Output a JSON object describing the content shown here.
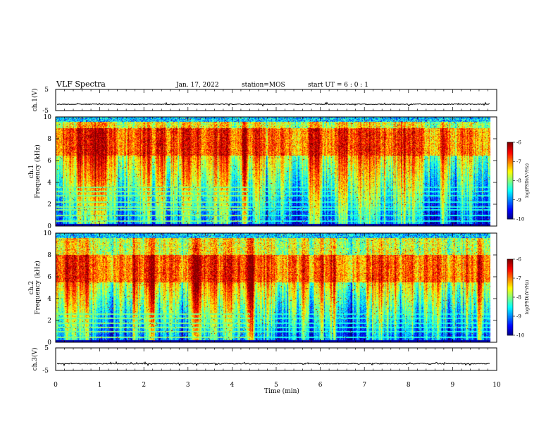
{
  "header": {
    "title": "VLF Spectra",
    "date": "Jan. 17, 2022",
    "station": "station=MOS",
    "start": "start UT =  6 : 0 : 1"
  },
  "chart_data": [
    {
      "type": "line",
      "name": "ch1-waveform",
      "ylabel": "ch.1(V)",
      "ylim": [
        -5,
        5
      ],
      "yticks": [
        "5",
        "-5"
      ],
      "baseline": -2
    },
    {
      "type": "heatmap",
      "name": "ch1-spectrogram",
      "ylabel": "ch.1\nFrequency (kHz)",
      "ylabel_lines": [
        "ch.1",
        "Frequency (kHz)"
      ],
      "ylim": [
        0,
        10
      ],
      "yticks": [
        "0",
        "2",
        "4",
        "6",
        "8",
        "10"
      ],
      "xlim": [
        0,
        10
      ],
      "data_end_min": 9.85,
      "colorbar": {
        "label": "log(PSD)(V²/Hz)",
        "range": [
          -10,
          -6
        ],
        "ticks": [
          "-6",
          "-7",
          "-8",
          "-9",
          "-10"
        ]
      },
      "intense_band_khz": [
        6.5,
        9
      ],
      "lines_khz": [
        0.5,
        1.0,
        1.5,
        1.8,
        2.2,
        2.8,
        3.2,
        3.6
      ]
    },
    {
      "type": "heatmap",
      "name": "ch2-spectrogram",
      "ylabel": "ch.2\nFrequency (kHz)",
      "ylabel_lines": [
        "ch.2",
        "Frequency (kHz)"
      ],
      "ylim": [
        0,
        10
      ],
      "yticks": [
        "0",
        "2",
        "4",
        "6",
        "8",
        "10"
      ],
      "xlim": [
        0,
        10
      ],
      "data_end_min": 9.85,
      "colorbar": {
        "label": "log(PSD)(V²/Hz)",
        "range": [
          -10,
          -6
        ],
        "ticks": [
          "-6",
          "-7",
          "-8",
          "-9",
          "-10"
        ]
      },
      "intense_band_khz": [
        5.5,
        8
      ],
      "lines_khz": [
        0.5,
        1.0,
        1.4,
        1.8,
        2.2,
        2.6
      ]
    },
    {
      "type": "line",
      "name": "ch3-waveform",
      "ylabel": "ch.3(V)",
      "ylim": [
        -5,
        5
      ],
      "yticks": [
        "5",
        "-5"
      ],
      "baseline": -2
    }
  ],
  "xaxis": {
    "label": "Time (min)",
    "ticks": [
      "0",
      "1",
      "2",
      "3",
      "4",
      "5",
      "6",
      "7",
      "8",
      "9",
      "10"
    ]
  }
}
